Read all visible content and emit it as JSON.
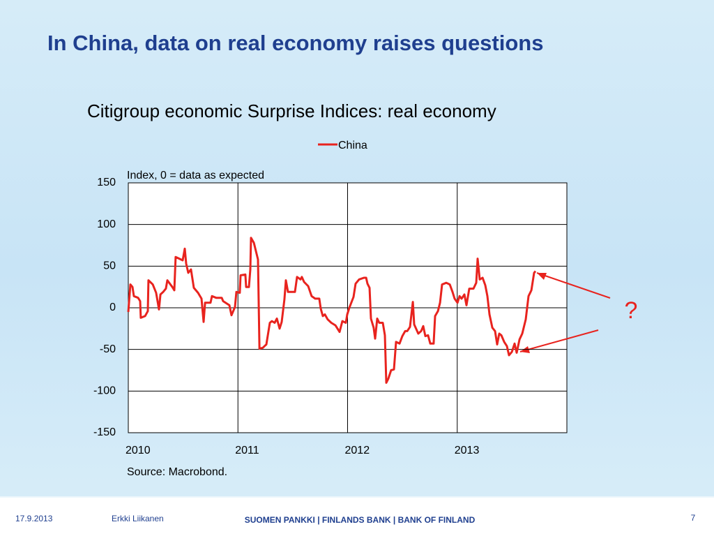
{
  "chart_data": {
    "type": "line",
    "slide_title": "In China, data on real economy raises questions",
    "title": "Citigroup economic Surprise Indices: real economy",
    "y_axis_note": "Index, 0 = data as expected",
    "source": "Source: Macrobond.",
    "annotation": "?",
    "legend": "top-center",
    "grid": true,
    "xlim": [
      2010,
      2014
    ],
    "xticks": [
      2010,
      2011,
      2012,
      2013
    ],
    "ylim": [
      -150,
      150
    ],
    "yticks": [
      -150,
      -100,
      -50,
      0,
      50,
      100,
      150
    ],
    "series": [
      {
        "name": "China",
        "color": "#e8231e",
        "x": [
          2010.0,
          2010.019,
          2010.038,
          2010.051,
          2010.089,
          2010.108,
          2010.114,
          2010.153,
          2010.178,
          2010.184,
          2010.223,
          2010.254,
          2010.28,
          2010.293,
          2010.318,
          2010.343,
          2010.356,
          2010.401,
          2010.42,
          2010.432,
          2010.496,
          2010.515,
          2010.528,
          2010.547,
          2010.572,
          2010.598,
          2010.636,
          2010.668,
          2010.687,
          2010.7,
          2010.75,
          2010.763,
          2010.801,
          2010.852,
          2010.865,
          2010.922,
          2010.941,
          2010.973,
          2010.986,
          2011.017,
          2011.024,
          2011.068,
          2011.075,
          2011.1,
          2011.113,
          2011.119,
          2011.145,
          2011.183,
          2011.196,
          2011.227,
          2011.259,
          2011.291,
          2011.31,
          2011.335,
          2011.355,
          2011.38,
          2011.399,
          2011.424,
          2011.437,
          2011.456,
          2011.482,
          2011.52,
          2011.539,
          2011.571,
          2011.583,
          2011.603,
          2011.641,
          2011.672,
          2011.704,
          2011.742,
          2011.755,
          2011.774,
          2011.793,
          2011.819,
          2011.851,
          2011.889,
          2011.927,
          2011.952,
          2011.984,
          2011.997,
          2012.016,
          2012.054,
          2012.073,
          2012.105,
          2012.149,
          2012.169,
          2012.181,
          2012.2,
          2012.213,
          2012.238,
          2012.251,
          2012.27,
          2012.289,
          2012.321,
          2012.34,
          2012.353,
          2012.372,
          2012.397,
          2012.423,
          2012.442,
          2012.474,
          2012.499,
          2012.525,
          2012.544,
          2012.569,
          2012.595,
          2012.607,
          2012.645,
          2012.671,
          2012.69,
          2012.709,
          2012.734,
          2012.754,
          2012.785,
          2012.798,
          2012.824,
          2012.843,
          2012.862,
          2012.9,
          2012.932,
          2012.957,
          2012.976,
          2013.002,
          2013.021,
          2013.04,
          2013.065,
          2013.084,
          2013.11,
          2013.148,
          2013.173,
          2013.186,
          2013.205,
          2013.231,
          2013.256,
          2013.275,
          2013.294,
          2013.32,
          2013.345,
          2013.364,
          2013.383,
          2013.402,
          2013.428,
          2013.453,
          2013.472,
          2013.498,
          2013.523,
          2013.542,
          2013.568,
          2013.593,
          2013.625,
          2013.65,
          2013.676,
          2013.701,
          2013.714
        ],
        "values": [
          -5,
          28,
          25,
          14,
          12,
          8,
          -12,
          -10,
          -4,
          33,
          28,
          18,
          -2,
          16,
          19,
          23,
          33,
          25,
          21,
          61,
          57,
          71,
          53,
          42,
          46,
          24,
          18,
          11,
          -17,
          6,
          6,
          14,
          12,
          12,
          8,
          3,
          -9,
          1,
          19,
          18,
          39,
          40,
          25,
          25,
          46,
          84,
          78,
          58,
          -49,
          -48,
          -44,
          -18,
          -16,
          -18,
          -13,
          -25,
          -17,
          10,
          33,
          19,
          19,
          19,
          37,
          34,
          37,
          31,
          26,
          14,
          11,
          11,
          -1,
          -10,
          -8,
          -14,
          -18,
          -21,
          -29,
          -16,
          -18,
          -8,
          0,
          13,
          29,
          34,
          36,
          36,
          29,
          24,
          -13,
          -24,
          -37,
          -13,
          -18,
          -18,
          -33,
          -90,
          -85,
          -75,
          -74,
          -41,
          -43,
          -34,
          -28,
          -28,
          -23,
          7,
          -20,
          -31,
          -28,
          -22,
          -34,
          -33,
          -43,
          -43,
          -10,
          -4,
          6,
          28,
          30,
          28,
          19,
          11,
          6,
          14,
          11,
          16,
          3,
          23,
          23,
          30,
          59,
          34,
          36,
          27,
          14,
          -8,
          -24,
          -28,
          -44,
          -31,
          -33,
          -41,
          -46,
          -57,
          -53,
          -43,
          -54,
          -38,
          -31,
          -14,
          14,
          21,
          42,
          44
        ]
      }
    ]
  },
  "footer": {
    "date": "17.9.2013",
    "author": "Erkki Liikanen",
    "org": "SUOMEN PANKKI | FINLANDS BANK | BANK OF FINLAND",
    "page": "7"
  }
}
